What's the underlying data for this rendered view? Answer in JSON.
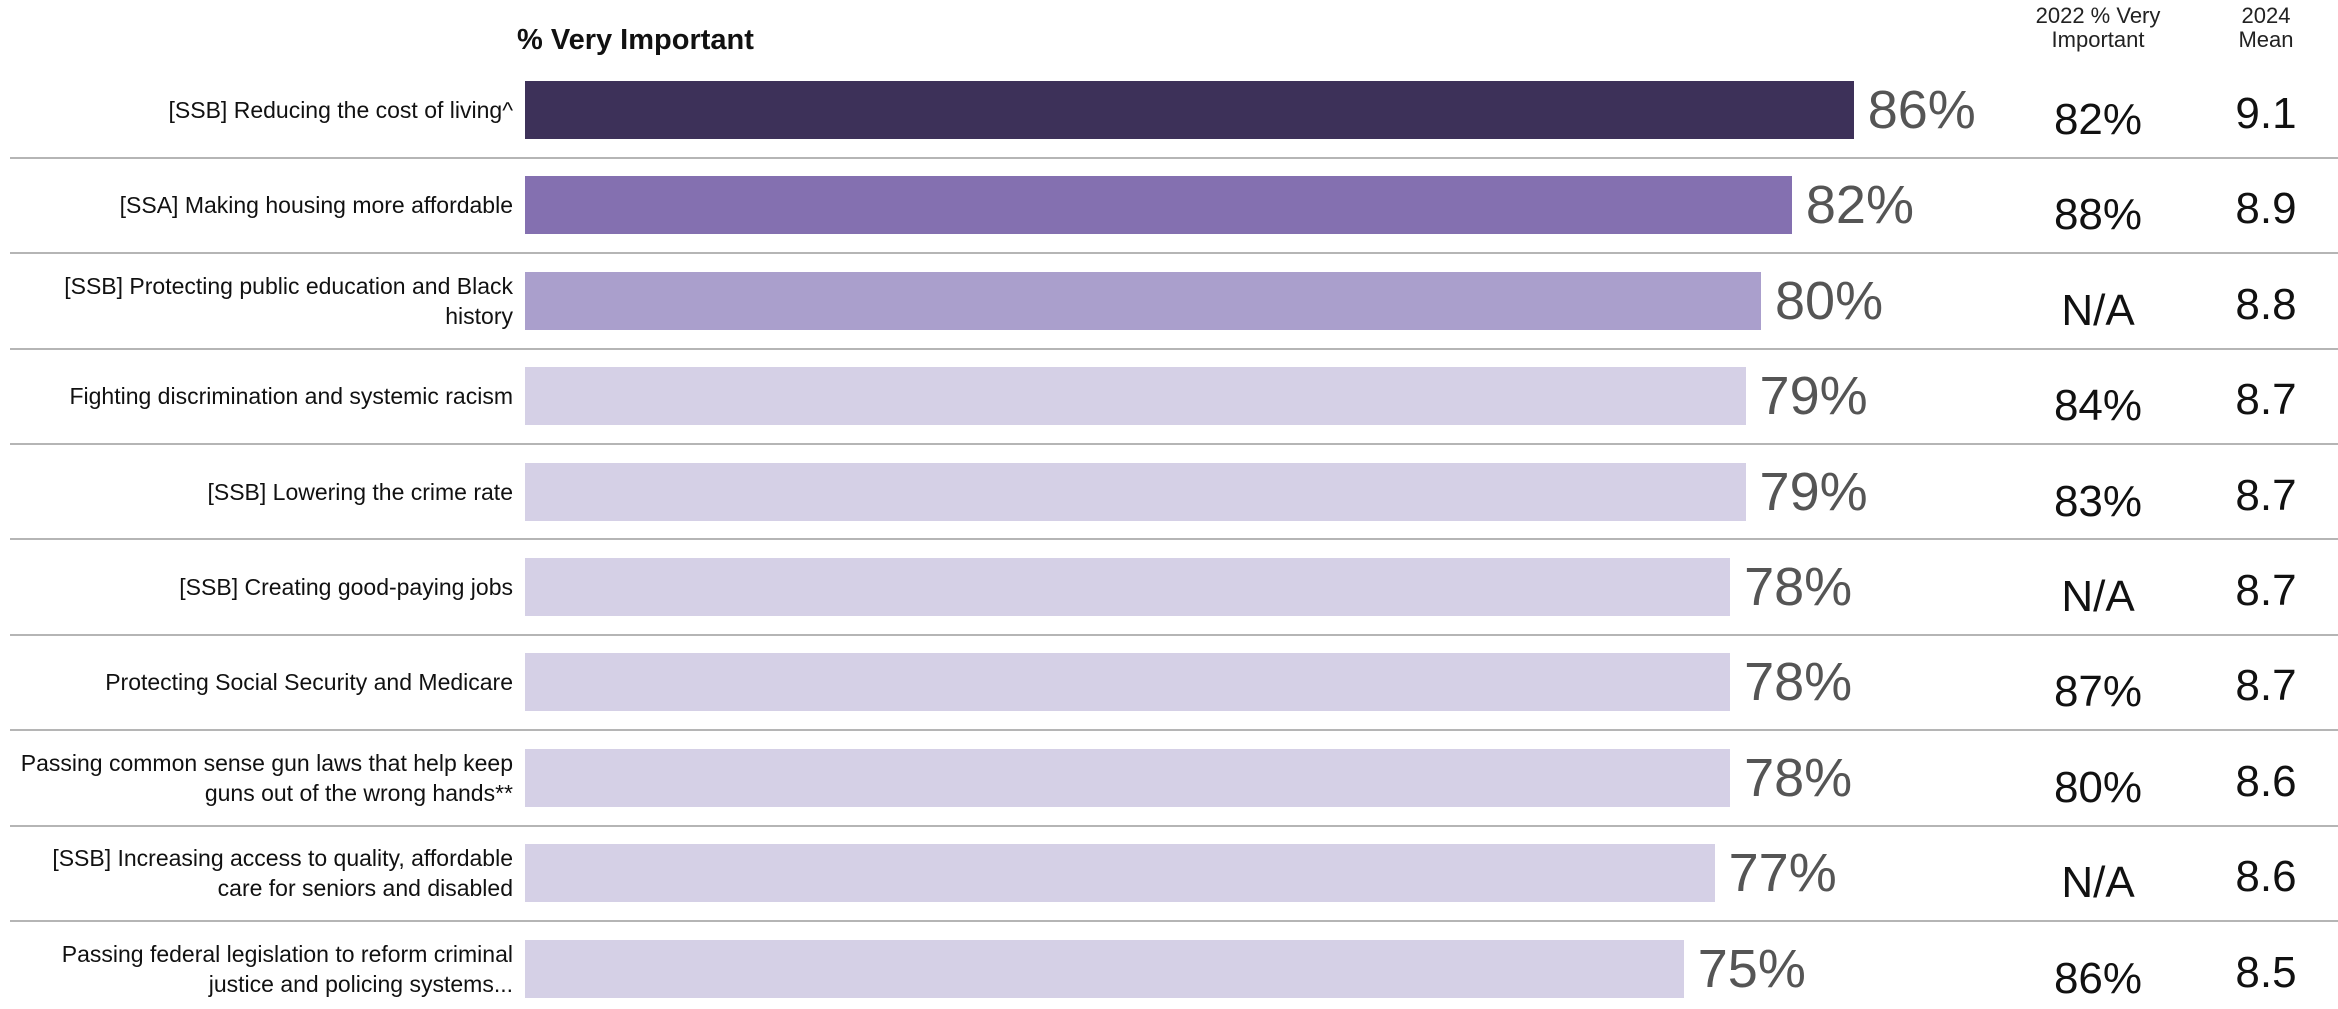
{
  "chart_data": {
    "type": "bar",
    "orientation": "horizontal",
    "title": "% Very Important",
    "categories": [
      "[SSB] Reducing the cost of living^",
      "[SSA] Making housing more affordable",
      "[SSB] Protecting public education and Black history",
      "Fighting discrimination and systemic racism",
      "[SSB] Lowering the crime rate",
      "[SSB] Creating good-paying jobs",
      "Protecting Social Security and Medicare",
      "Passing common sense gun laws that help keep guns out of the wrong hands**",
      "[SSB] Increasing access to quality, affordable care for seniors and disabled",
      "Passing federal legislation to reform criminal justice and policing systems..."
    ],
    "values": [
      86,
      82,
      80,
      79,
      79,
      78,
      78,
      78,
      77,
      75
    ],
    "value_labels": [
      "86%",
      "82%",
      "80%",
      "79%",
      "79%",
      "78%",
      "78%",
      "78%",
      "77%",
      "75%"
    ],
    "colors": [
      "#3d3159",
      "#8470b0",
      "#aa9fcc",
      "#d5d0e6",
      "#d5d0e6",
      "#d5d0e6",
      "#d5d0e6",
      "#d5d0e6",
      "#d5d0e6",
      "#d5d0e6"
    ],
    "xlim": [
      0,
      100
    ],
    "columns": [
      {
        "name": "2022 % Very Important",
        "values": [
          82,
          88,
          null,
          84,
          83,
          null,
          87,
          80,
          null,
          86
        ],
        "value_labels": [
          "82%",
          "88%",
          "N/A",
          "84%",
          "83%",
          "N/A",
          "87%",
          "80%",
          "N/A",
          "86%"
        ]
      },
      {
        "name": "2024 Mean",
        "values": [
          9.1,
          8.9,
          8.8,
          8.7,
          8.7,
          8.7,
          8.7,
          8.6,
          8.6,
          8.5
        ]
      }
    ]
  }
}
